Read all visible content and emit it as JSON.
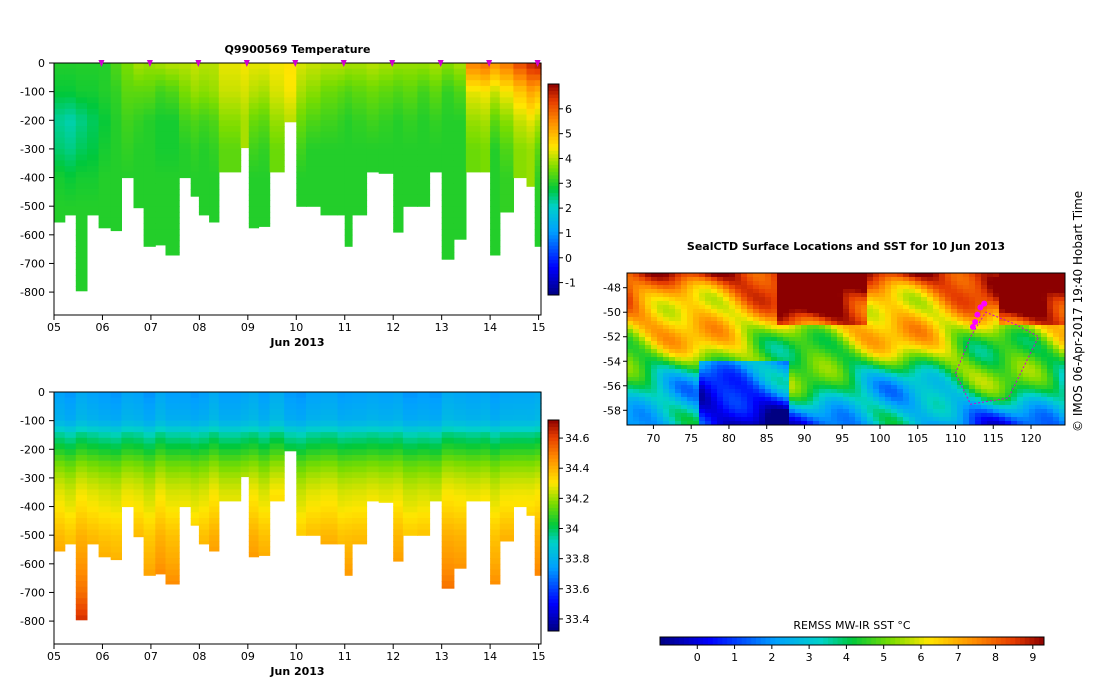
{
  "credit": "© IMOS 06-Apr-2017 19:40 Hobart Time",
  "chart_data": [
    {
      "id": "temperature",
      "type": "heatmap",
      "title": "Q9900569  Temperature",
      "xlabel": "Jun 2013",
      "ylabel": "",
      "x_ticks": [
        "05",
        "06",
        "07",
        "08",
        "09",
        "10",
        "11",
        "12",
        "13",
        "14",
        "15"
      ],
      "xlim": [
        5,
        15.05
      ],
      "y_ticks": [
        0,
        -100,
        -200,
        -300,
        -400,
        -500,
        -600,
        -700,
        -800
      ],
      "ylim": [
        -880,
        0
      ],
      "profile_marker_days": [
        6,
        7,
        8,
        9,
        10,
        11,
        12,
        13,
        14,
        15
      ],
      "colorbar": {
        "ticks": [
          6,
          5,
          4,
          3,
          2,
          1,
          0,
          -1
        ],
        "min": -1.5,
        "max": 7.0
      },
      "profiles": [
        {
          "t": 5.0,
          "w": 0.22,
          "bottom": -555,
          "s": [
            3.0,
            2.8,
            2.3,
            2.5,
            2.9,
            3.0
          ]
        },
        {
          "t": 5.22,
          "w": 0.23,
          "bottom": -530,
          "s": [
            3.0,
            2.8,
            2.2,
            2.4,
            2.8,
            3.0
          ]
        },
        {
          "t": 5.45,
          "w": 0.23,
          "bottom": -795,
          "s": [
            3.0,
            2.9,
            2.4,
            2.6,
            2.9,
            3.0,
            3.0
          ]
        },
        {
          "t": 5.68,
          "w": 0.24,
          "bottom": -530,
          "s": [
            3.0,
            2.9,
            2.6,
            2.7,
            2.9,
            3.0
          ]
        },
        {
          "t": 5.92,
          "w": 0.25,
          "bottom": -575,
          "s": [
            3.0,
            3.0,
            2.8,
            2.9,
            3.0,
            3.0
          ]
        },
        {
          "t": 6.17,
          "w": 0.22,
          "bottom": -585,
          "s": [
            3.3,
            3.1,
            3.0,
            3.0,
            3.0,
            3.0
          ]
        },
        {
          "t": 6.39,
          "w": 0.25,
          "bottom": -400,
          "s": [
            3.6,
            3.4,
            3.2,
            3.1,
            3.0
          ]
        },
        {
          "t": 6.64,
          "w": 0.21,
          "bottom": -505,
          "s": [
            3.9,
            3.4,
            3.1,
            3.0,
            3.0
          ]
        },
        {
          "t": 6.85,
          "w": 0.24,
          "bottom": -640,
          "s": [
            3.8,
            3.4,
            3.0,
            3.0,
            3.0,
            3.0
          ]
        },
        {
          "t": 7.09,
          "w": 0.21,
          "bottom": -635,
          "s": [
            3.9,
            3.2,
            2.9,
            2.9,
            3.0,
            3.0
          ]
        },
        {
          "t": 7.3,
          "w": 0.28,
          "bottom": -670,
          "s": [
            4.0,
            3.3,
            2.9,
            2.9,
            3.0,
            3.0
          ]
        },
        {
          "t": 7.58,
          "w": 0.24,
          "bottom": -400,
          "s": [
            4.0,
            3.6,
            3.2,
            3.0,
            3.0
          ]
        },
        {
          "t": 7.82,
          "w": 0.17,
          "bottom": -465,
          "s": [
            4.1,
            3.8,
            3.3,
            3.1,
            3.0
          ]
        },
        {
          "t": 7.99,
          "w": 0.21,
          "bottom": -530,
          "s": [
            4.0,
            3.7,
            3.2,
            3.0,
            3.0
          ]
        },
        {
          "t": 8.2,
          "w": 0.2,
          "bottom": -555,
          "s": [
            4.0,
            3.8,
            3.3,
            3.1,
            3.0
          ]
        },
        {
          "t": 8.4,
          "w": 0.45,
          "bottom": -380,
          "s": [
            4.3,
            4.1,
            3.7,
            3.4
          ]
        },
        {
          "t": 8.85,
          "w": 0.17,
          "bottom": -295,
          "s": [
            4.4,
            4.2,
            3.9
          ]
        },
        {
          "t": 9.02,
          "w": 0.2,
          "bottom": -575,
          "s": [
            4.3,
            4.0,
            3.5,
            3.2,
            3.0,
            3.0
          ]
        },
        {
          "t": 9.22,
          "w": 0.23,
          "bottom": -570,
          "s": [
            4.3,
            3.9,
            3.4,
            3.1,
            3.0,
            3.0
          ]
        },
        {
          "t": 9.45,
          "w": 0.3,
          "bottom": -380,
          "s": [
            4.4,
            4.2,
            3.8,
            3.5
          ]
        },
        {
          "t": 9.75,
          "w": 0.25,
          "bottom": -205,
          "s": [
            4.5,
            4.4,
            4.0
          ]
        },
        {
          "t": 10.0,
          "w": 0.2,
          "bottom": -500,
          "s": [
            4.2,
            3.9,
            3.5,
            3.2,
            3.0
          ]
        },
        {
          "t": 10.2,
          "w": 0.3,
          "bottom": -500,
          "s": [
            4.1,
            3.7,
            3.3,
            3.0,
            3.0
          ]
        },
        {
          "t": 10.5,
          "w": 0.35,
          "bottom": -530,
          "s": [
            4.0,
            3.5,
            3.2,
            3.0,
            3.0,
            3.0
          ]
        },
        {
          "t": 10.85,
          "w": 0.15,
          "bottom": -530,
          "s": [
            4.0,
            3.4,
            3.1,
            3.0,
            3.0
          ]
        },
        {
          "t": 11.0,
          "w": 0.15,
          "bottom": -640,
          "s": [
            3.9,
            3.3,
            3.0,
            3.0,
            3.0,
            3.0
          ]
        },
        {
          "t": 11.15,
          "w": 0.3,
          "bottom": -530,
          "s": [
            3.9,
            3.4,
            3.1,
            3.0,
            3.0
          ]
        },
        {
          "t": 11.45,
          "w": 0.25,
          "bottom": -380,
          "s": [
            4.0,
            3.5,
            3.2,
            3.0
          ]
        },
        {
          "t": 11.7,
          "w": 0.3,
          "bottom": -385,
          "s": [
            3.9,
            3.4,
            3.1,
            3.0
          ]
        },
        {
          "t": 12.0,
          "w": 0.2,
          "bottom": -590,
          "s": [
            3.8,
            3.3,
            3.0,
            3.0,
            3.0,
            3.0
          ]
        },
        {
          "t": 12.2,
          "w": 0.3,
          "bottom": -500,
          "s": [
            3.8,
            3.4,
            3.1,
            3.0,
            3.0
          ]
        },
        {
          "t": 12.5,
          "w": 0.25,
          "bottom": -500,
          "s": [
            3.8,
            3.2,
            3.0,
            3.0,
            3.0
          ]
        },
        {
          "t": 12.75,
          "w": 0.25,
          "bottom": -380,
          "s": [
            3.9,
            3.4,
            3.1,
            3.0
          ]
        },
        {
          "t": 13.0,
          "w": 0.25,
          "bottom": -685,
          "s": [
            3.7,
            3.1,
            3.0,
            3.0,
            3.0,
            3.0,
            3.0
          ]
        },
        {
          "t": 13.25,
          "w": 0.25,
          "bottom": -615,
          "s": [
            3.9,
            3.3,
            3.0,
            3.0,
            3.0,
            3.0
          ]
        },
        {
          "t": 13.5,
          "w": 0.3,
          "bottom": -380,
          "s": [
            5.6,
            4.3,
            3.8,
            3.5
          ]
        },
        {
          "t": 13.8,
          "w": 0.2,
          "bottom": -380,
          "s": [
            5.8,
            4.4,
            3.9,
            3.6
          ]
        },
        {
          "t": 14.0,
          "w": 0.2,
          "bottom": -670,
          "s": [
            5.4,
            4.1,
            3.4,
            3.0,
            3.0,
            3.0,
            3.0
          ]
        },
        {
          "t": 14.2,
          "w": 0.28,
          "bottom": -520,
          "s": [
            5.7,
            4.4,
            3.7,
            3.3,
            3.1
          ]
        },
        {
          "t": 14.48,
          "w": 0.27,
          "bottom": -400,
          "s": [
            6.2,
            4.8,
            4.1,
            3.7
          ]
        },
        {
          "t": 14.75,
          "w": 0.17,
          "bottom": -430,
          "s": [
            6.6,
            5.2,
            4.3,
            3.8
          ]
        },
        {
          "t": 14.92,
          "w": 0.13,
          "bottom": -640,
          "s": [
            6.8,
            5.0,
            4.0,
            3.4,
            3.1,
            3.0
          ]
        }
      ]
    },
    {
      "id": "salinity",
      "type": "heatmap",
      "title": "",
      "xlabel": "Jun 2013",
      "ylabel": "",
      "x_ticks": [
        "05",
        "06",
        "07",
        "08",
        "09",
        "10",
        "11",
        "12",
        "13",
        "14",
        "15"
      ],
      "xlim": [
        5,
        15.05
      ],
      "y_ticks": [
        0,
        -100,
        -200,
        -300,
        -400,
        -500,
        -600,
        -700,
        -800
      ],
      "ylim": [
        -880,
        0
      ],
      "colorbar": {
        "ticks": [
          34.6,
          34.4,
          34.2,
          34,
          33.8,
          33.6,
          33.4
        ],
        "min": 33.32,
        "max": 34.72
      },
      "salinity_profile": {
        "depths": [
          0,
          -100,
          -150,
          -200,
          -250,
          -300,
          -350,
          -400,
          -500,
          -600,
          -700,
          -800
        ],
        "values": [
          33.75,
          33.8,
          33.95,
          34.05,
          34.15,
          34.22,
          34.27,
          34.3,
          34.38,
          34.43,
          34.5,
          34.62
        ]
      }
    },
    {
      "id": "sst_map",
      "type": "heatmap",
      "title": "SealCTD Surface Locations and SST for 10 Jun 2013",
      "xlabel": "",
      "ylabel": "",
      "x_ticks": [
        70,
        75,
        80,
        85,
        90,
        95,
        100,
        105,
        110,
        115,
        120
      ],
      "xlim": [
        66.5,
        124.5
      ],
      "y_ticks": [
        -48,
        -50,
        -52,
        -54,
        -56,
        -58
      ],
      "ylim": [
        -59.2,
        -46.8
      ],
      "colorbar": {
        "label": "REMSS MW-IR SST °C",
        "ticks": [
          0,
          1,
          2,
          3,
          4,
          5,
          6,
          7,
          8,
          9
        ],
        "min": -1.0,
        "max": 9.3
      },
      "seal_positions": [
        [
          112.6,
          -50.8
        ],
        [
          112.9,
          -50.2
        ],
        [
          113.3,
          -49.6
        ],
        [
          113.8,
          -49.3
        ],
        [
          112.3,
          -51.2
        ]
      ]
    }
  ]
}
